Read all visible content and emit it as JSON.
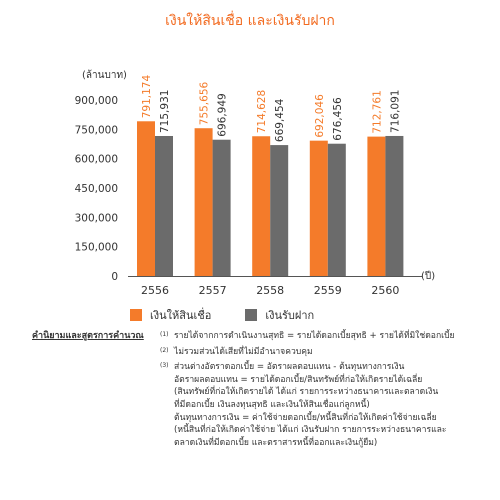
{
  "title": "เงินให้สินเชื่อ และเงินรับฝาก",
  "colors": {
    "loans": "#f47b2a",
    "deposits": "#6b6b6b",
    "title": "#f26b21"
  },
  "chart_data": {
    "type": "bar",
    "title": "เงินให้สินเชื่อ และเงินรับฝาก",
    "ylabel": "(ล้านบาท)",
    "xlabel": "(ปี)",
    "categories": [
      "2556",
      "2557",
      "2558",
      "2559",
      "2560"
    ],
    "ylim": [
      0,
      900000
    ],
    "yticks": [
      0,
      150000,
      300000,
      450000,
      600000,
      750000,
      900000
    ],
    "ytick_labels": [
      "0",
      "150,000",
      "300,000",
      "450,000",
      "600,000",
      "750,000",
      "900,000"
    ],
    "series": [
      {
        "name": "เงินให้สินเชื่อ",
        "values": [
          791174,
          755656,
          714628,
          692046,
          712761
        ],
        "labels": [
          "791,174",
          "755,656",
          "714,628",
          "692,046",
          "712,761"
        ]
      },
      {
        "name": "เงินรับฝาก",
        "values": [
          715931,
          696949,
          669454,
          676456,
          716091
        ],
        "labels": [
          "715,931",
          "696,949",
          "669,454",
          "676,456",
          "716,091"
        ]
      }
    ],
    "legend": "bottom",
    "grid": false
  },
  "notes": {
    "heading": "คำนิยามและสูตรการคำนวณ",
    "items": [
      {
        "mark": "(1)",
        "lines": [
          "รายได้จากการดำเนินงานสุทธิ = รายได้ดอกเบี้ยสุทธิ + รายได้ที่มิใช่ดอกเบี้ย"
        ]
      },
      {
        "mark": "(2)",
        "lines": [
          "ไม่รวมส่วนได้เสียที่ไม่มีอำนาจควบคุม"
        ]
      },
      {
        "mark": "(3)",
        "lines": [
          "ส่วนต่างอัตราดอกเบี้ย = อัตราผลตอบแทน - ต้นทุนทางการเงิน",
          "อัตราผลตอบแทน = รายได้ดอกเบี้ย/สินทรัพย์ที่ก่อให้เกิดรายได้เฉลี่ย",
          "(สินทรัพย์ที่ก่อให้เกิดรายได้ ได้แก่ รายการระหว่างธนาคารและตลาดเงิน",
          "ที่มีดอกเบี้ย เงินลงทุนสุทธิ และเงินให้สินเชื่อแก่ลูกหนี้)",
          "ต้นทุนทางการเงิน = ค่าใช้จ่ายดอกเบี้ย/หนี้สินที่ก่อให้เกิดค่าใช้จ่ายเฉลี่ย",
          "(หนี้สินที่ก่อให้เกิดค่าใช้จ่าย ได้แก่ เงินรับฝาก รายการระหว่างธนาคารและ",
          "ตลาดเงินที่มีดอกเบี้ย และตราสารหนี้ที่ออกและเงินกู้ยืม)"
        ]
      }
    ]
  }
}
